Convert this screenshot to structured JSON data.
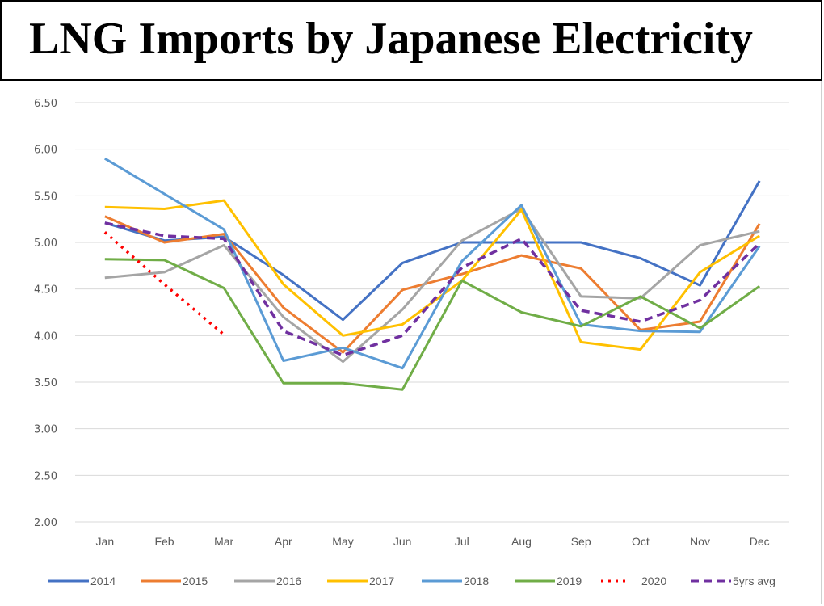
{
  "chart_data": {
    "type": "line",
    "title": "LNG Imports by Japanese Electricity",
    "xlabel": "",
    "ylabel": "",
    "ylim": [
      2.0,
      6.5
    ],
    "yticks": [
      "2.00",
      "2.50",
      "3.00",
      "3.50",
      "4.00",
      "4.50",
      "5.00",
      "5.50",
      "6.00",
      "6.50"
    ],
    "ytick_values": [
      2.0,
      2.5,
      3.0,
      3.5,
      4.0,
      4.5,
      5.0,
      5.5,
      6.0,
      6.5
    ],
    "grid": true,
    "legend_position": "bottom",
    "categories": [
      "Jan",
      "Feb",
      "Mar",
      "Apr",
      "May",
      "Jun",
      "Jul",
      "Aug",
      "Sep",
      "Oct",
      "Nov",
      "Dec"
    ],
    "series": [
      {
        "name": "2014",
        "color": "#4472C4",
        "style": "solid",
        "values": [
          5.21,
          5.02,
          5.06,
          4.65,
          4.17,
          4.78,
          5.0,
          5.0,
          5.0,
          4.83,
          4.54,
          5.66
        ]
      },
      {
        "name": "2015",
        "color": "#ED7D31",
        "style": "solid",
        "values": [
          5.28,
          5.0,
          5.09,
          4.3,
          3.82,
          4.49,
          4.66,
          4.86,
          4.72,
          4.06,
          4.15,
          5.2
        ]
      },
      {
        "name": "2016",
        "color": "#A5A5A5",
        "style": "solid",
        "values": [
          4.62,
          4.68,
          4.97,
          4.2,
          3.72,
          4.28,
          5.02,
          5.36,
          4.42,
          4.4,
          4.97,
          5.12
        ]
      },
      {
        "name": "2017",
        "color": "#FFC000",
        "style": "solid",
        "values": [
          5.38,
          5.36,
          5.45,
          4.55,
          4.0,
          4.12,
          4.59,
          5.35,
          3.93,
          3.85,
          4.68,
          5.07
        ]
      },
      {
        "name": "2018",
        "color": "#5B9BD5",
        "style": "solid",
        "values": [
          5.9,
          5.52,
          5.14,
          3.73,
          3.87,
          3.65,
          4.8,
          5.4,
          4.12,
          4.05,
          4.04,
          4.96
        ]
      },
      {
        "name": "2019",
        "color": "#70AD47",
        "style": "solid",
        "values": [
          4.82,
          4.81,
          4.51,
          3.49,
          3.49,
          3.42,
          4.59,
          4.25,
          4.1,
          4.42,
          4.08,
          4.53
        ]
      },
      {
        "name": "2020",
        "color": "#FF0000",
        "style": "dotted",
        "values": [
          5.11,
          4.55,
          4.01,
          null,
          null,
          null,
          null,
          null,
          null,
          null,
          null,
          null
        ]
      },
      {
        "name": "5yrs avg",
        "color": "#7030A0",
        "style": "dashed",
        "values": [
          5.21,
          5.07,
          5.04,
          4.05,
          3.79,
          4.0,
          4.73,
          5.04,
          4.27,
          4.15,
          4.38,
          4.99
        ]
      }
    ]
  }
}
